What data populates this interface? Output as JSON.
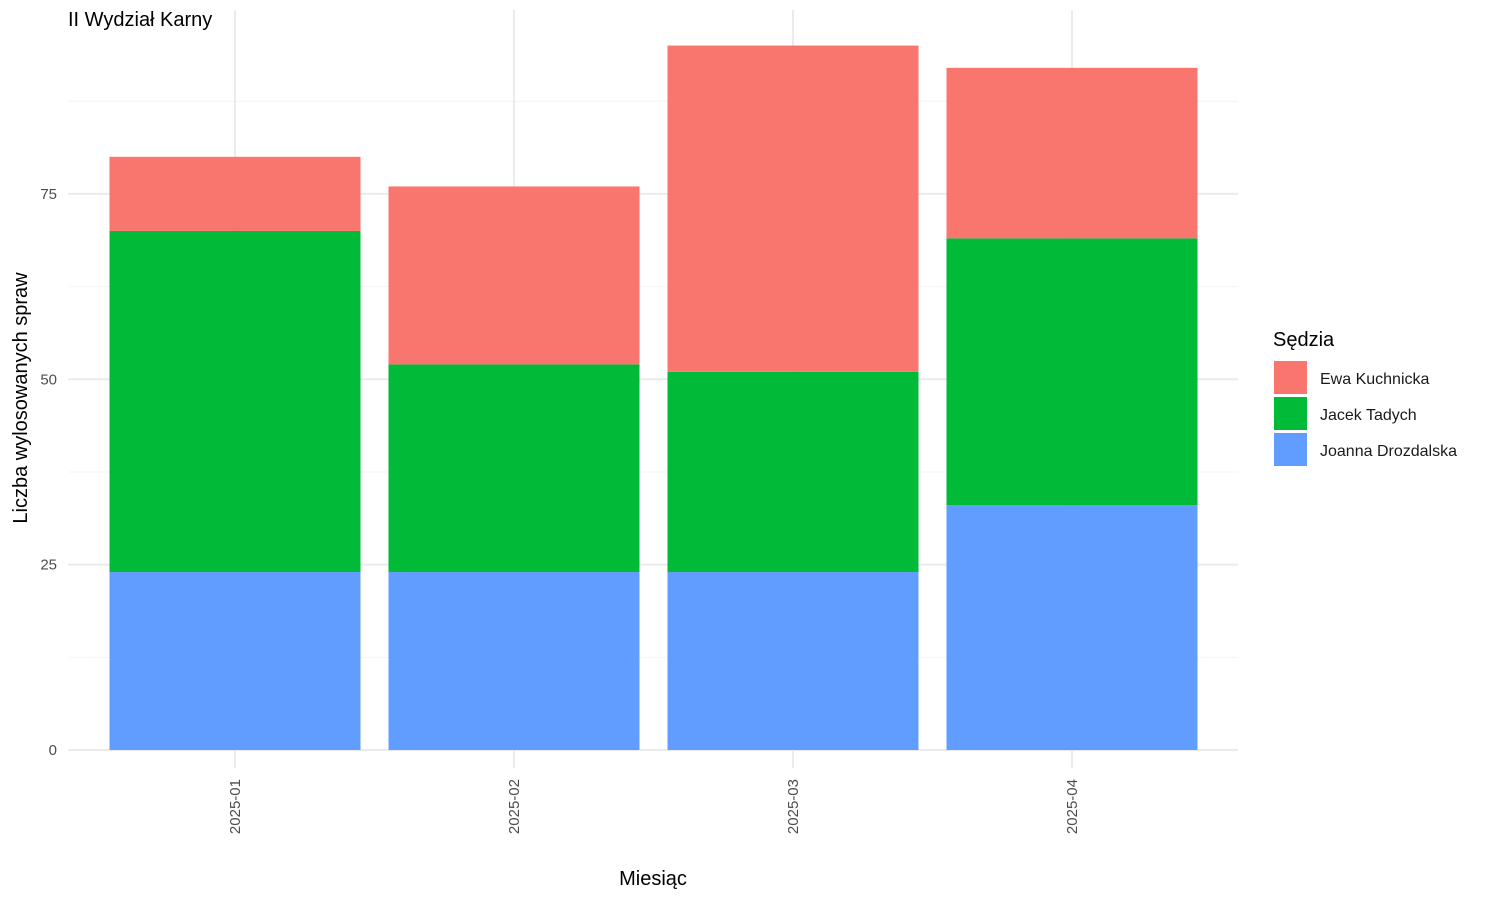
{
  "chart_data": {
    "type": "bar",
    "stacked": true,
    "title": "II Wydział Karny",
    "xlabel": "Miesiąc",
    "ylabel": "Liczba wylosowanych spraw",
    "categories": [
      "2025-01",
      "2025-02",
      "2025-03",
      "2025-04"
    ],
    "series": [
      {
        "name": "Joanna Drozdalska",
        "color": "#619CFF",
        "values": [
          24,
          24,
          24,
          33
        ]
      },
      {
        "name": "Jacek Tadych",
        "color": "#00BA38",
        "values": [
          46,
          28,
          27,
          36
        ]
      },
      {
        "name": "Ewa Kuchnicka",
        "color": "#F8766D",
        "values": [
          10,
          24,
          44,
          23
        ]
      }
    ],
    "legend_title": "Sędzia",
    "legend_order": [
      "Ewa Kuchnicka",
      "Jacek Tadych",
      "Joanna Drozdalska"
    ],
    "legend_position": "right",
    "yticks": [
      0,
      25,
      50,
      75
    ],
    "ylim": [
      0,
      99
    ],
    "grid": true,
    "x_tick_rotation": "vertical"
  }
}
